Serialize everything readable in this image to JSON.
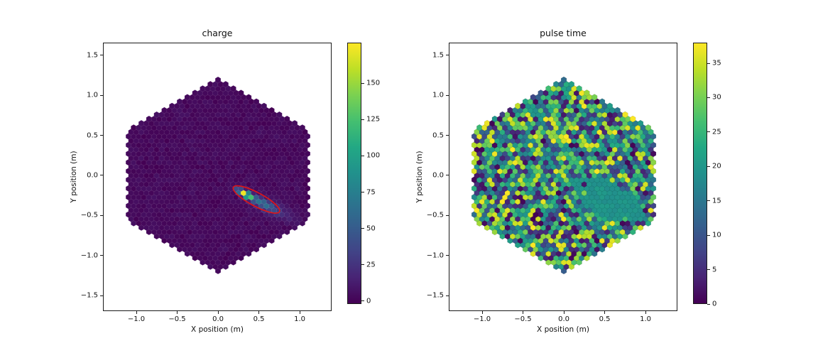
{
  "figure": {
    "background": "#ffffff",
    "colormap": "viridis",
    "viridis_stops": [
      "#440154",
      "#482475",
      "#414487",
      "#355f8d",
      "#2a788e",
      "#21918c",
      "#22a884",
      "#44bf70",
      "#7ad151",
      "#bddf26",
      "#fde725"
    ],
    "seed": 42
  },
  "chart_data": [
    {
      "type": "hexmap",
      "title": "charge",
      "xlabel": "X position (m)",
      "ylabel": "Y position (m)",
      "xlim": [
        -1.409,
        1.391
      ],
      "ylim": [
        -1.695,
        1.659
      ],
      "x_ticks": [
        {
          "v": -1.0,
          "label": "−1.0"
        },
        {
          "v": -0.5,
          "label": "−0.5"
        },
        {
          "v": 0.0,
          "label": "0.0"
        },
        {
          "v": 0.5,
          "label": "0.5"
        },
        {
          "v": 1.0,
          "label": "1.0"
        }
      ],
      "y_ticks": [
        {
          "v": 1.5,
          "label": "1.5"
        },
        {
          "v": 1.0,
          "label": "1.0"
        },
        {
          "v": 0.5,
          "label": "0.5"
        },
        {
          "v": 0.0,
          "label": "0.0"
        },
        {
          "v": -0.5,
          "label": "−0.5"
        },
        {
          "v": -1.0,
          "label": "−1.0"
        },
        {
          "v": -1.5,
          "label": "−1.5"
        }
      ],
      "camera": {
        "outline_apothem": 1.12,
        "outline_vertex": 1.22,
        "pixel_spacing": 0.0626,
        "pixel_shape": "hexagon-pointy-top"
      },
      "scale": {
        "vmin": -2,
        "vmax": 178
      },
      "colorbar_ticks": [
        {
          "v": 0,
          "label": "0"
        },
        {
          "v": 25,
          "label": "25"
        },
        {
          "v": 50,
          "label": "50"
        },
        {
          "v": 75,
          "label": "75"
        },
        {
          "v": 100,
          "label": "100"
        },
        {
          "v": 125,
          "label": "125"
        },
        {
          "v": 150,
          "label": "150"
        }
      ],
      "baseline_noise": {
        "mean": 2,
        "amp": 5
      },
      "shower": {
        "cx": 0.33,
        "cy": -0.23,
        "angle_deg": -28,
        "core_amp": 172,
        "core_sigma_u": 0.1,
        "core_sigma_w": 0.034,
        "tail_amp": 52,
        "tail_offset_u": 0.22,
        "tail_sigma_u": 0.2,
        "tail_sigma_w": 0.055,
        "haze_amp": 16,
        "haze_offset_u": 0.42,
        "haze_sigma_u": 0.28,
        "haze_sigma_w": 0.1
      },
      "hillas_ellipse": {
        "cx": 0.47,
        "cy": -0.3,
        "semi_major": 0.32,
        "semi_minor": 0.085,
        "angle_deg": -28,
        "color": "#e41414",
        "stroke_width": 1.6
      }
    },
    {
      "type": "hexmap",
      "title": "pulse time",
      "xlabel": "X position (m)",
      "ylabel": "Y position (m)",
      "xlim": [
        -1.409,
        1.391
      ],
      "ylim": [
        -1.695,
        1.659
      ],
      "x_ticks": [
        {
          "v": -1.0,
          "label": "−1.0"
        },
        {
          "v": -0.5,
          "label": "−0.5"
        },
        {
          "v": 0.0,
          "label": "0.0"
        },
        {
          "v": 0.5,
          "label": "0.5"
        },
        {
          "v": 1.0,
          "label": "1.0"
        }
      ],
      "y_ticks": [
        {
          "v": 1.5,
          "label": "1.5"
        },
        {
          "v": 1.0,
          "label": "1.0"
        },
        {
          "v": 0.5,
          "label": "0.5"
        },
        {
          "v": 0.0,
          "label": "0.0"
        },
        {
          "v": -0.5,
          "label": "−0.5"
        },
        {
          "v": -1.0,
          "label": "−1.0"
        },
        {
          "v": -1.5,
          "label": "−1.5"
        }
      ],
      "camera": {
        "outline_apothem": 1.12,
        "outline_vertex": 1.22,
        "pixel_spacing": 0.0626,
        "pixel_shape": "hexagon-pointy-top"
      },
      "scale": {
        "vmin": 0,
        "vmax": 38
      },
      "colorbar_ticks": [
        {
          "v": 0,
          "label": "0"
        },
        {
          "v": 5,
          "label": "5"
        },
        {
          "v": 10,
          "label": "10"
        },
        {
          "v": 15,
          "label": "15"
        },
        {
          "v": 20,
          "label": "20"
        },
        {
          "v": 25,
          "label": "25"
        },
        {
          "v": 30,
          "label": "30"
        },
        {
          "v": 35,
          "label": "35"
        }
      ],
      "values": {
        "distribution": "uniform",
        "min": 0,
        "max": 38
      },
      "uniform_patch": {
        "cx": 0.55,
        "cy": -0.3,
        "semi_major": 0.48,
        "semi_minor": 0.22,
        "angle_deg": -27,
        "value": 18.5,
        "value_jitter": 2.0,
        "outlier_fraction": 0.06
      }
    }
  ]
}
